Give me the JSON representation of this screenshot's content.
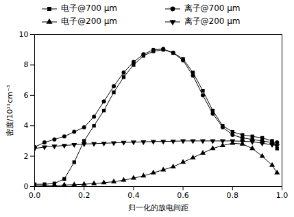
{
  "chart_data": {
    "type": "line",
    "x_label": "归一化的放电间距",
    "y_label": "密度/10¹¹cm⁻³",
    "x": [
      0,
      0.04,
      0.08,
      0.12,
      0.16,
      0.2,
      0.24,
      0.28,
      0.32,
      0.36,
      0.4,
      0.44,
      0.48,
      0.52,
      0.56,
      0.6,
      0.64,
      0.68,
      0.72,
      0.76,
      0.8,
      0.84,
      0.88,
      0.92,
      0.96,
      0.98
    ],
    "series": [
      {
        "name": "电子@700 μm",
        "color": "#000000",
        "marker": "square",
        "values": [
          0.15,
          0.15,
          0.2,
          0.5,
          1.6,
          3.0,
          4.0,
          5.0,
          6.2,
          7.2,
          8.0,
          8.6,
          8.9,
          9.0,
          8.8,
          8.4,
          7.5,
          6.3,
          5.0,
          4.0,
          3.6,
          3.4,
          3.3,
          3.2,
          3.0,
          2.5
        ]
      },
      {
        "name": "离子@700 μm",
        "color": "#000000",
        "marker": "circle",
        "values": [
          2.6,
          2.9,
          3.1,
          3.3,
          3.6,
          3.9,
          4.6,
          5.6,
          6.6,
          7.5,
          8.2,
          8.7,
          9.0,
          9.05,
          8.8,
          8.3,
          7.3,
          6.0,
          4.8,
          3.9,
          3.4,
          3.2,
          3.1,
          3.0,
          2.9,
          2.9
        ]
      },
      {
        "name": "电子@200 μm",
        "color": "#000000",
        "marker": "triangle",
        "values": [
          0.05,
          0.06,
          0.08,
          0.1,
          0.12,
          0.15,
          0.2,
          0.25,
          0.32,
          0.42,
          0.55,
          0.7,
          0.9,
          1.1,
          1.3,
          1.6,
          1.9,
          2.2,
          2.5,
          2.7,
          2.85,
          2.8,
          2.5,
          2.0,
          1.4,
          0.9
        ]
      },
      {
        "name": "离子@200 μm",
        "color": "#000000",
        "marker": "triangle-down",
        "values": [
          2.5,
          2.6,
          2.65,
          2.7,
          2.75,
          2.8,
          2.82,
          2.85,
          2.87,
          2.9,
          2.92,
          2.94,
          2.96,
          2.97,
          2.98,
          3.0,
          3.0,
          3.0,
          3.0,
          3.0,
          3.0,
          2.98,
          2.95,
          2.85,
          2.75,
          2.7
        ]
      }
    ],
    "xlim": [
      0,
      1.0
    ],
    "xticks": [
      {
        "value": 0,
        "label": "0.0"
      },
      0.2,
      0.4,
      0.6,
      0.8,
      {
        "value": 1.0,
        "label": "1.0"
      }
    ],
    "ylim": [
      0,
      10
    ],
    "yticks": [
      0,
      2,
      4,
      6,
      8,
      10
    ],
    "grid": false,
    "legend": "top"
  }
}
